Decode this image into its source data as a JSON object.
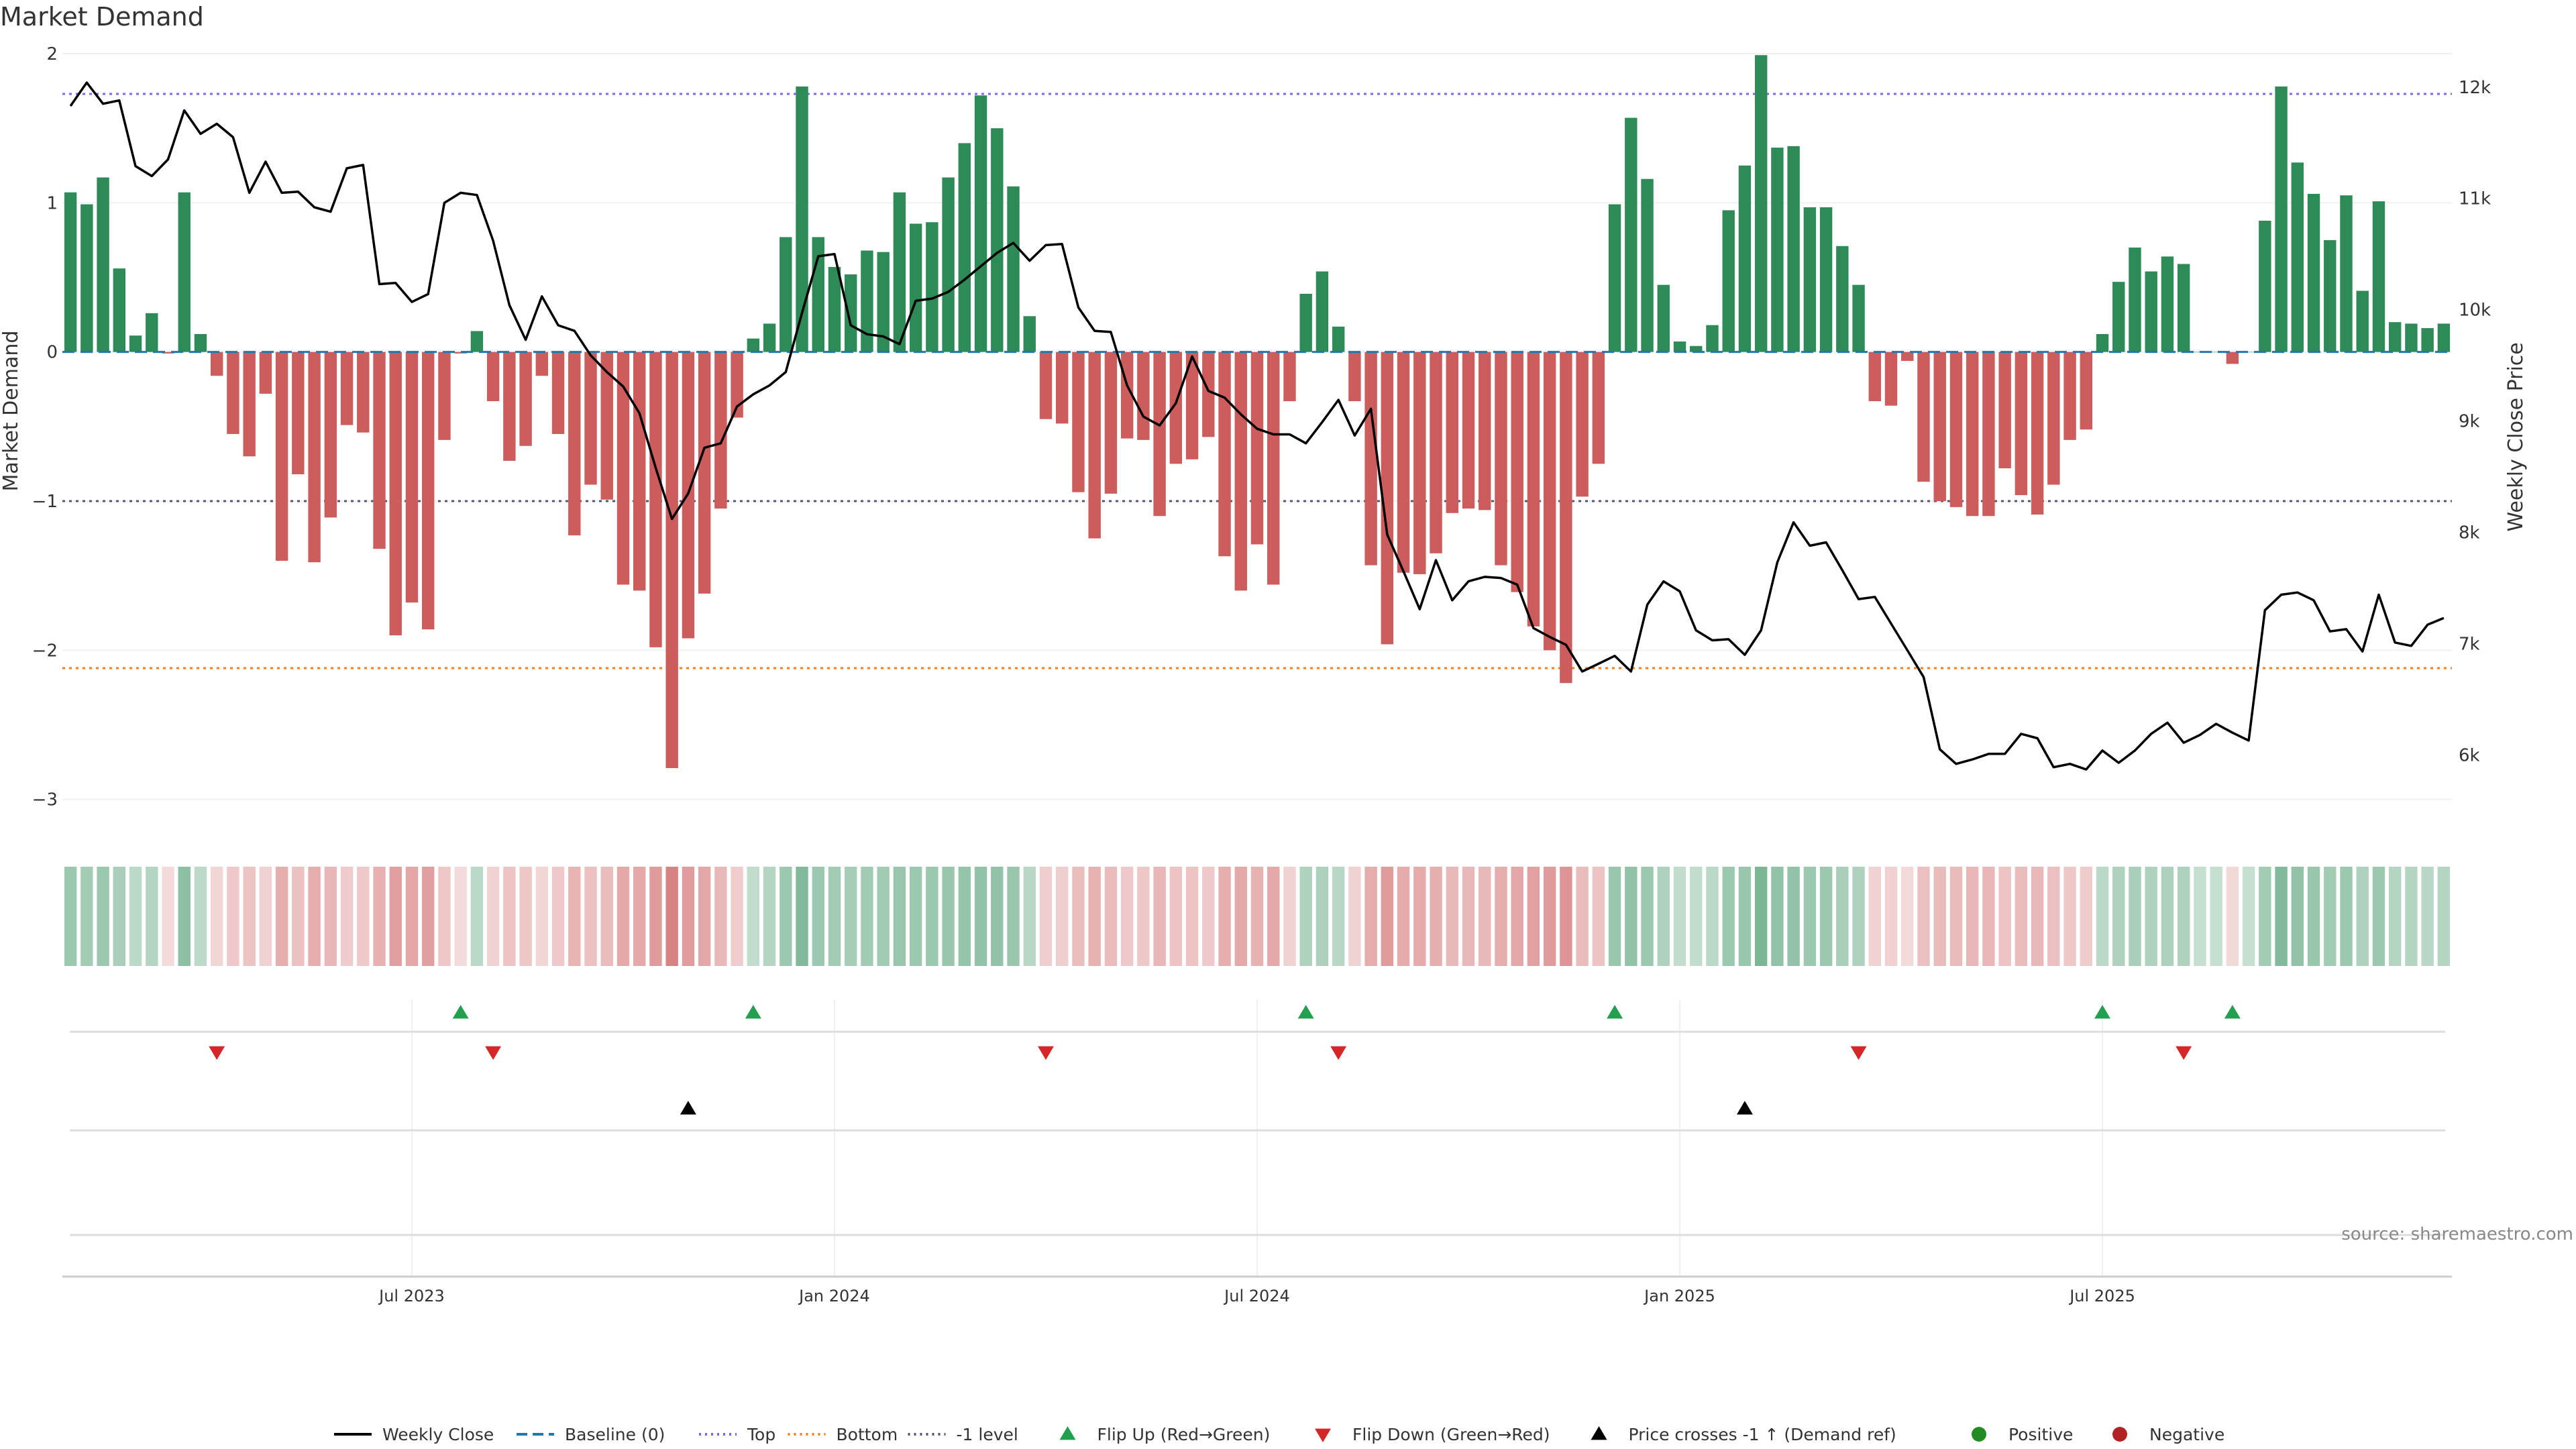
{
  "title": "Market Demand",
  "source": "source: sharemaestro.com",
  "colors": {
    "positive": "#2e8b57",
    "negative": "#cd5c5c",
    "price_line": "#000000",
    "baseline": "#1f77b4",
    "top_line": "#7b68ee",
    "bottom_line": "#ff7f0e",
    "minus1_line": "#555577",
    "flip_up": "#22a050",
    "flip_down": "#d62728",
    "cross": "#000000",
    "dot_positive": "#228b22",
    "dot_negative": "#b22222"
  },
  "legend": [
    {
      "label": "Weekly Close",
      "kind": "line",
      "color": "#000000",
      "dash": ""
    },
    {
      "label": "Baseline (0)",
      "kind": "line",
      "color": "#1f77b4",
      "dash": "16,8"
    },
    {
      "label": "Top",
      "kind": "line",
      "color": "#7b68ee",
      "dash": "3,6"
    },
    {
      "label": "Bottom",
      "kind": "line",
      "color": "#ff7f0e",
      "dash": "3,6"
    },
    {
      "label": "-1 level",
      "kind": "line",
      "color": "#555577",
      "dash": "3,6"
    },
    {
      "label": "Flip Up (Red→Green)",
      "kind": "tri-up",
      "color": "#22a050"
    },
    {
      "label": "Flip Down (Green→Red)",
      "kind": "tri-down",
      "color": "#d62728"
    },
    {
      "label": "Price crosses -1 ↑ (Demand ref)",
      "kind": "tri-up",
      "color": "#000000"
    },
    {
      "label": "Positive",
      "kind": "dot",
      "color": "#228b22"
    },
    {
      "label": "Negative",
      "kind": "dot",
      "color": "#b22222"
    }
  ],
  "chart_data": {
    "type": "bar",
    "ylabel": "Market Demand",
    "y2label": "Weekly Close Price",
    "ylim": [
      -3.15,
      2.0
    ],
    "y2lim": [
      5400,
      12300
    ],
    "yticks": [
      2,
      1,
      0,
      -1,
      -2,
      -3
    ],
    "y2ticks": [
      12000,
      11000,
      10000,
      9000,
      8000,
      7000,
      6000
    ],
    "y2ticklabels": [
      "12k",
      "11k",
      "10k",
      "9k",
      "8k",
      "7k",
      "6k"
    ],
    "xticks": [
      "Jul 2023",
      "Jan 2024",
      "Jul 2024",
      "Jan 2025",
      "Jul 2025"
    ],
    "top_level": 1.73,
    "bottom_level": -2.12,
    "minus1_level": -1.0,
    "baseline_level": 0,
    "grid": true,
    "legend_position": "bottom",
    "demand": [
      1.07,
      0.99,
      1.17,
      0.56,
      0.11,
      0.26,
      -0.01,
      1.07,
      0.12,
      -0.16,
      -0.55,
      -0.7,
      -0.28,
      -1.4,
      -0.82,
      -1.41,
      -1.11,
      -0.49,
      -0.54,
      -1.32,
      -1.9,
      -1.68,
      -1.86,
      -0.59,
      -0.01,
      0.14,
      -0.33,
      -0.73,
      -0.63,
      -0.16,
      -0.55,
      -1.23,
      -0.89,
      -0.99,
      -1.56,
      -1.6,
      -1.98,
      -2.79,
      -1.92,
      -1.62,
      -1.05,
      -0.44,
      0.09,
      0.19,
      0.77,
      1.78,
      0.77,
      0.57,
      0.52,
      0.68,
      0.67,
      1.07,
      0.86,
      0.87,
      1.17,
      1.4,
      1.72,
      1.5,
      1.11,
      0.24,
      -0.45,
      -0.48,
      -0.94,
      -1.25,
      -0.95,
      -0.58,
      -0.59,
      -1.1,
      -0.75,
      -0.72,
      -0.57,
      -1.37,
      -1.6,
      -1.29,
      -1.56,
      -0.33,
      0.39,
      0.54,
      0.17,
      -0.33,
      -1.43,
      -1.96,
      -1.48,
      -1.49,
      -1.35,
      -1.08,
      -1.05,
      -1.06,
      -1.43,
      -1.61,
      -1.84,
      -2.0,
      -2.22,
      -0.97,
      -0.75,
      0.99,
      1.57,
      1.16,
      0.45,
      0.07,
      0.04,
      0.18,
      0.95,
      1.25,
      1.99,
      1.37,
      1.38,
      0.97,
      0.97,
      0.71,
      0.45,
      -0.33,
      -0.36,
      -0.06,
      -0.87,
      -1.0,
      -1.04,
      -1.1,
      -1.1,
      -0.78,
      -0.96,
      -1.09,
      -0.89,
      -0.59,
      -0.52,
      0.12,
      0.47,
      0.7,
      0.54,
      0.64,
      0.59,
      0.0,
      0.0,
      -0.08,
      0.0,
      0.88,
      1.78,
      1.27,
      1.06,
      0.75,
      1.05,
      0.41,
      1.01,
      0.2,
      0.19,
      0.16,
      0.19
    ],
    "price": [
      11830,
      12040,
      11850,
      11880,
      11290,
      11200,
      11350,
      11790,
      11580,
      11670,
      11550,
      11050,
      11330,
      11050,
      11060,
      10920,
      10880,
      11270,
      11300,
      10230,
      10240,
      10070,
      10140,
      10960,
      11050,
      11030,
      10620,
      10040,
      9730,
      10120,
      9860,
      9810,
      9590,
      9440,
      9310,
      9070,
      8580,
      8120,
      8350,
      8760,
      8800,
      9130,
      9240,
      9320,
      9440,
      9970,
      10480,
      10500,
      9860,
      9780,
      9760,
      9690,
      10080,
      10100,
      10160,
      10270,
      10390,
      10510,
      10600,
      10440,
      10580,
      10590,
      10020,
      9810,
      9800,
      9320,
      9040,
      8960,
      9160,
      9580,
      9270,
      9210,
      9060,
      8930,
      8880,
      8880,
      8800,
      8990,
      9190,
      8870,
      9110,
      7980,
      7650,
      7310,
      7750,
      7390,
      7560,
      7600,
      7590,
      7530,
      7140,
      7060,
      6990,
      6750,
      6820,
      6890,
      6750,
      7350,
      7560,
      7470,
      7120,
      7030,
      7040,
      6900,
      7120,
      7730,
      8090,
      7880,
      7910,
      7660,
      7400,
      7420,
      7180,
      6940,
      6700,
      6050,
      5920,
      5960,
      6010,
      6010,
      6190,
      6150,
      5890,
      5920,
      5870,
      6040,
      5930,
      6040,
      6190,
      6290,
      6110,
      6180,
      6280,
      6200,
      6130,
      7300,
      7440,
      7460,
      7390,
      7110,
      7130,
      6930,
      7440,
      7010,
      6980,
      7170,
      7230
    ],
    "strength_positive": [
      0.45,
      0.4,
      0.47,
      0.35,
      0.2,
      0.25,
      0.15,
      0.6,
      0.18,
      0,
      0,
      0,
      0,
      0,
      0,
      0,
      0,
      0,
      0,
      0,
      0,
      0,
      0,
      0,
      0.12,
      0.2,
      0,
      0,
      0,
      0,
      0,
      0,
      0,
      0,
      0,
      0,
      0,
      0,
      0,
      0,
      0,
      0,
      0.15,
      0.25,
      0.45,
      0.7,
      0.45,
      0.4,
      0.38,
      0.42,
      0.42,
      0.5,
      0.46,
      0.46,
      0.5,
      0.52,
      0.55,
      0.55,
      0.5,
      0.22,
      0,
      0,
      0,
      0,
      0,
      0,
      0,
      0,
      0,
      0,
      0,
      0,
      0,
      0,
      0,
      0,
      0.3,
      0.33,
      0.22,
      0,
      0,
      0,
      0,
      0,
      0,
      0,
      0,
      0,
      0,
      0,
      0,
      0,
      0,
      0,
      0,
      0.5,
      0.55,
      0.48,
      0.3,
      0.15,
      0.15,
      0.2,
      0.45,
      0.5,
      0.75,
      0.55,
      0.55,
      0.45,
      0.45,
      0.35,
      0.3,
      0,
      0,
      0,
      0,
      0,
      0,
      0,
      0,
      0,
      0,
      0,
      0,
      0,
      0,
      0.2,
      0.3,
      0.35,
      0.3,
      0.33,
      0.3,
      0.1,
      0.1,
      0,
      0.1,
      0.4,
      0.7,
      0.55,
      0.5,
      0.4,
      0.45,
      0.3,
      0.45,
      0.25,
      0.25,
      0.22,
      0.25
    ],
    "flip_up_index": [
      24,
      42,
      76,
      95,
      125,
      133
    ],
    "flip_down_index": [
      9,
      26,
      60,
      78,
      110,
      130
    ],
    "price_cross_index": [
      38,
      103
    ]
  }
}
